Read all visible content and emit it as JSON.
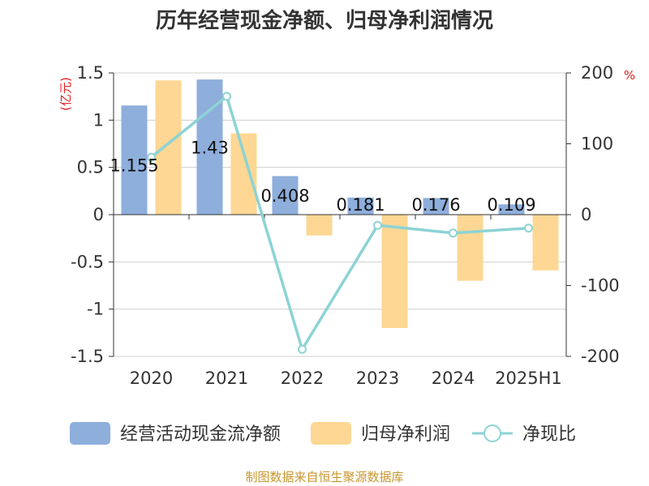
{
  "chart_data": {
    "type": "bar",
    "title": "历年经营现金净额、归母净利润情况",
    "categories": [
      "2020",
      "2021",
      "2022",
      "2023",
      "2024",
      "2025H1"
    ],
    "left_axis": {
      "unit": "(亿元)",
      "ylim": [
        -1.5,
        1.5
      ],
      "ticks": [
        "1.5",
        "1",
        "0.5",
        "0",
        "-0.5",
        "-1",
        "-1.5"
      ]
    },
    "right_axis": {
      "unit": "%",
      "ylim": [
        -200,
        200
      ],
      "ticks": [
        "200",
        "100",
        "0",
        "-100",
        "-200"
      ]
    },
    "series": [
      {
        "name": "经营活动现金流净额",
        "type": "bar",
        "axis": "left",
        "color": "#8eaedc",
        "values": [
          1.155,
          1.43,
          0.408,
          0.181,
          0.176,
          0.109
        ],
        "labels": [
          "1.155",
          "1.43",
          "0.408",
          "0.181",
          "0.176",
          "0.109"
        ]
      },
      {
        "name": "归母净利润",
        "type": "bar",
        "axis": "left",
        "color": "#fdd793",
        "values": [
          1.42,
          0.86,
          -0.22,
          -1.2,
          -0.7,
          -0.59
        ]
      },
      {
        "name": "净现比",
        "type": "line",
        "axis": "right",
        "color": "#8dd3d4",
        "values": [
          81,
          167,
          -190,
          -15,
          -26,
          -19
        ]
      }
    ],
    "grid": true,
    "legend_position": "bottom"
  },
  "source_note": "制图数据来自恒生聚源数据库"
}
